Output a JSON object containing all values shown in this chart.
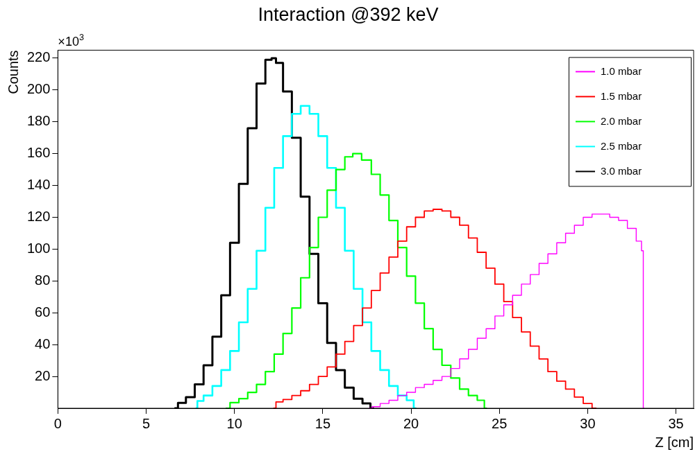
{
  "chart_data": {
    "type": "step",
    "title": "Interaction @392 keV",
    "xlabel": "Z [cm]",
    "ylabel": "Counts",
    "annotations": [
      "×10$^{3}$"
    ],
    "xlim": [
      0,
      36
    ],
    "xticks": [
      0,
      5,
      10,
      15,
      20,
      25,
      30,
      35
    ],
    "ylim": [
      0,
      225
    ],
    "yticks": [
      20,
      40,
      60,
      80,
      100,
      120,
      140,
      160,
      180,
      200,
      220
    ],
    "grid": false,
    "legend": "top right",
    "line_style": "solid",
    "marker": "none",
    "series": [
      {
        "name": "1.0 mbar",
        "color": "#ff00ff",
        "x": [
          17.6,
          18,
          18.5,
          19,
          19.5,
          20,
          20.5,
          21,
          21.5,
          22,
          22.5,
          23,
          23.5,
          24,
          24.5,
          25,
          25.5,
          26,
          26.5,
          27,
          27.5,
          28,
          28.5,
          29,
          29.5,
          30,
          30.5,
          31,
          31.5,
          32,
          32.5,
          33,
          33.1,
          33.2
        ],
        "values": [
          0,
          1,
          3,
          5,
          8,
          10,
          13,
          15,
          17.5,
          20,
          25,
          31,
          37,
          44,
          50,
          58,
          65,
          71,
          78,
          84,
          91,
          97,
          104,
          110,
          115,
          120,
          122,
          122,
          120,
          118,
          113,
          105,
          99,
          0
        ]
      },
      {
        "name": "1.5 mbar",
        "color": "#ff0000",
        "x": [
          12.2,
          12.5,
          13,
          13.5,
          14,
          14.5,
          15,
          15.5,
          16,
          16.5,
          17,
          17.5,
          18,
          18.5,
          19,
          19.5,
          20,
          20.5,
          21,
          21.5,
          22,
          22.5,
          23,
          23.5,
          24,
          24.5,
          25,
          25.5,
          26,
          26.5,
          27,
          27.5,
          28,
          28.5,
          29,
          29.5,
          30,
          30.5
        ],
        "values": [
          0,
          4,
          5.5,
          8,
          11,
          15,
          20,
          26,
          34,
          42,
          52,
          63,
          74,
          85,
          95,
          105,
          114,
          120,
          124,
          125,
          124,
          120,
          115,
          107,
          98,
          88,
          78,
          67,
          57,
          48,
          39,
          31,
          23,
          17,
          12,
          7,
          3,
          0
        ]
      },
      {
        "name": "2.0 mbar",
        "color": "#00ff00",
        "x": [
          9.5,
          10,
          10.5,
          11,
          11.5,
          12,
          12.5,
          13,
          13.5,
          14,
          14.5,
          15,
          15.5,
          16,
          16.5,
          16.9,
          17.5,
          18,
          18.5,
          19,
          19.5,
          20,
          20.5,
          21,
          21.5,
          22,
          22.5,
          23,
          23.5,
          24,
          24.3
        ],
        "values": [
          0,
          3.5,
          6,
          10,
          15,
          23,
          34,
          47,
          63,
          82,
          101,
          120,
          137,
          150,
          158,
          160,
          156,
          147,
          134,
          118,
          101,
          83,
          66,
          50,
          37,
          27,
          19,
          12,
          8,
          5,
          0
        ]
      },
      {
        "name": "2.5 mbar",
        "color": "#00ffff",
        "x": [
          7.8,
          8,
          8.5,
          9,
          9.5,
          10,
          10.5,
          11,
          11.5,
          12,
          12.5,
          13,
          13.5,
          14,
          14.5,
          15,
          15.5,
          16,
          16.5,
          17,
          17.5,
          18,
          18.5,
          19,
          19.5,
          20,
          20.3
        ],
        "values": [
          0,
          4.6,
          8,
          14,
          24,
          36,
          54,
          75,
          99,
          126,
          151,
          171,
          185,
          190,
          185,
          171,
          151,
          126,
          99,
          75,
          54,
          36,
          24,
          14,
          8,
          5,
          0
        ]
      },
      {
        "name": "3.0 mbar",
        "color": "#000000",
        "x": [
          6.6,
          7,
          7.5,
          8,
          8.5,
          9,
          9.5,
          10,
          10.5,
          11,
          11.5,
          12,
          12.2,
          12.5,
          13,
          13.5,
          14,
          14.5,
          15,
          15.5,
          16,
          16.5,
          17,
          17.5,
          17.9
        ],
        "values": [
          0,
          3.4,
          7,
          15,
          27,
          45,
          71,
          104,
          141,
          176,
          204,
          219,
          220,
          217,
          199,
          170,
          133,
          97,
          66,
          41,
          24,
          13,
          6,
          3,
          0
        ]
      }
    ]
  }
}
